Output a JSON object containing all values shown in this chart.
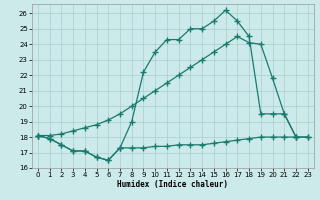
{
  "xlabel": "Humidex (Indice chaleur)",
  "bg_color": "#cceaea",
  "grid_color": "#aacccc",
  "line_color": "#1a7a6e",
  "xlim": [
    -0.5,
    23.5
  ],
  "ylim": [
    16,
    26.6
  ],
  "xticks": [
    0,
    1,
    2,
    3,
    4,
    5,
    6,
    7,
    8,
    9,
    10,
    11,
    12,
    13,
    14,
    15,
    16,
    17,
    18,
    19,
    20,
    21,
    22,
    23
  ],
  "yticks": [
    16,
    17,
    18,
    19,
    20,
    21,
    22,
    23,
    24,
    25,
    26
  ],
  "line1_x": [
    0,
    1,
    2,
    3,
    4,
    5,
    6,
    7,
    8,
    9,
    10,
    11,
    12,
    13,
    14,
    15,
    16,
    17,
    18,
    19,
    20,
    21,
    22
  ],
  "line1_y": [
    18.1,
    17.9,
    17.5,
    17.1,
    17.1,
    16.7,
    16.5,
    17.3,
    19.0,
    22.2,
    23.5,
    24.3,
    24.3,
    25.0,
    25.0,
    25.5,
    26.2,
    25.5,
    24.5,
    19.5,
    19.5,
    19.5,
    18.0
  ],
  "line2_x": [
    0,
    1,
    2,
    3,
    4,
    5,
    6,
    7,
    8,
    9,
    10,
    11,
    12,
    13,
    14,
    15,
    16,
    17,
    18,
    19,
    20,
    21,
    22,
    23
  ],
  "line2_y": [
    18.1,
    17.9,
    17.5,
    17.1,
    17.1,
    16.7,
    16.5,
    17.3,
    17.3,
    17.3,
    17.4,
    17.4,
    17.5,
    17.5,
    17.5,
    17.6,
    17.7,
    17.8,
    17.9,
    18.0,
    18.0,
    18.0,
    18.0,
    18.0
  ],
  "line3_x": [
    0,
    1,
    2,
    3,
    4,
    5,
    6,
    7,
    8,
    9,
    10,
    11,
    12,
    13,
    14,
    15,
    16,
    17,
    18,
    19,
    20,
    21,
    22,
    23
  ],
  "line3_y": [
    18.1,
    18.1,
    18.2,
    18.4,
    18.6,
    18.8,
    19.1,
    19.5,
    20.0,
    20.5,
    21.0,
    21.5,
    22.0,
    22.5,
    23.0,
    23.5,
    24.0,
    24.5,
    24.1,
    24.0,
    21.8,
    19.5,
    18.0,
    18.0
  ]
}
